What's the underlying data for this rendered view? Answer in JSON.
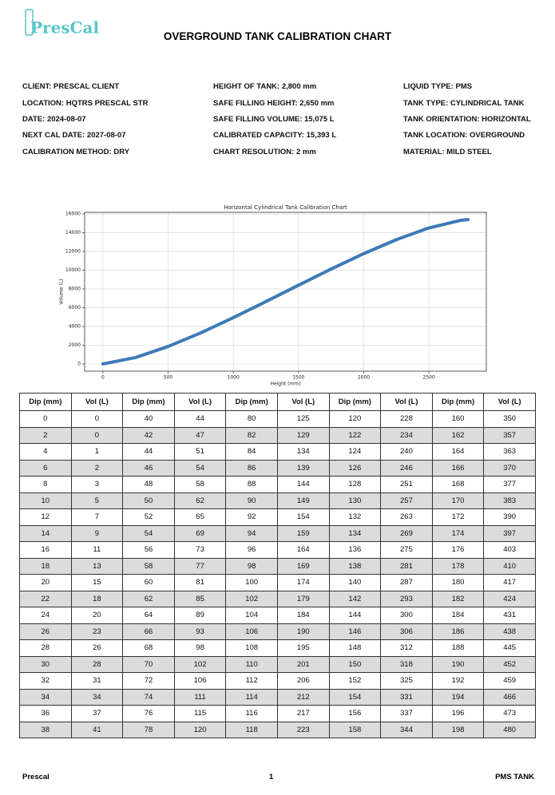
{
  "header": {
    "logo": "PresCal",
    "title": "OVERGROUND TANK CALIBRATION CHART"
  },
  "info": {
    "columns": [
      [
        "CLIENT: PRESCAL CLIENT",
        "LOCATION: HQTRS PRESCAL STR",
        "DATE: 2024-08-07",
        "NEXT CAL DATE: 2027-08-07",
        "CALIBRATION METHOD: DRY"
      ],
      [
        "HEIGHT OF TANK: 2,800 mm",
        "SAFE FILLING HEIGHT: 2,650 mm",
        "SAFE FILLING VOLUME: 15,075 L",
        "CALIBRATED CAPACITY: 15,393 L",
        "CHART RESOLUTION: 2 mm"
      ],
      [
        "LIQUID TYPE: PMS",
        "TANK TYPE: CYLINDRICAL TANK",
        "TANK ORIENTATION: HORIZONTAL",
        "TANK LOCATION: OVERGROUND",
        "MATERIAL: MILD STEEL"
      ]
    ]
  },
  "chart_data": {
    "type": "line",
    "title": "Horizontal Cylindrical Tank Calibration Chart",
    "x_label": "Height (mm)",
    "y_label": "Volume (L)",
    "x": [
      0,
      250,
      500,
      750,
      1000,
      1250,
      1500,
      1750,
      2000,
      2250,
      2500,
      2750,
      2800
    ],
    "values": [
      0,
      682,
      1862,
      3312,
      4936,
      6649,
      8395,
      10120,
      11765,
      13256,
      14507,
      15331,
      15393
    ],
    "color": "#3d7ab8",
    "xlim": [
      -140,
      2940
    ],
    "ylim": [
      -770,
      16170
    ],
    "xticks": [
      0,
      500,
      1000,
      1500,
      2000,
      2500
    ],
    "yticks": [
      0,
      2000,
      4000,
      6000,
      8000,
      10000,
      12000,
      14000,
      16000
    ],
    "grid": true
  },
  "table": {
    "headers": [
      "Dip (mm)",
      "Vol (L)",
      "Dip (mm)",
      "Vol (L)",
      "Dip (mm)",
      "Vol (L)",
      "Dip (mm)",
      "Vol (L)",
      "Dip (mm)",
      "Vol (L)"
    ],
    "rows": [
      [
        0,
        0,
        40,
        44,
        80,
        125,
        120,
        228,
        160,
        350
      ],
      [
        2,
        0,
        42,
        47,
        82,
        129,
        122,
        234,
        162,
        357
      ],
      [
        4,
        1,
        44,
        51,
        84,
        134,
        124,
        240,
        164,
        363
      ],
      [
        6,
        2,
        46,
        54,
        86,
        139,
        126,
        246,
        166,
        370
      ],
      [
        8,
        3,
        48,
        58,
        88,
        144,
        128,
        251,
        168,
        377
      ],
      [
        10,
        5,
        50,
        62,
        90,
        149,
        130,
        257,
        170,
        383
      ],
      [
        12,
        7,
        52,
        65,
        92,
        154,
        132,
        263,
        172,
        390
      ],
      [
        14,
        9,
        54,
        69,
        94,
        159,
        134,
        269,
        174,
        397
      ],
      [
        16,
        11,
        56,
        73,
        96,
        164,
        136,
        275,
        176,
        403
      ],
      [
        18,
        13,
        58,
        77,
        98,
        169,
        138,
        281,
        178,
        410
      ],
      [
        20,
        15,
        60,
        81,
        100,
        174,
        140,
        287,
        180,
        417
      ],
      [
        22,
        18,
        62,
        85,
        102,
        179,
        142,
        293,
        182,
        424
      ],
      [
        24,
        20,
        64,
        89,
        104,
        184,
        144,
        300,
        184,
        431
      ],
      [
        26,
        23,
        66,
        93,
        106,
        190,
        146,
        306,
        186,
        438
      ],
      [
        28,
        26,
        68,
        98,
        108,
        195,
        148,
        312,
        188,
        445
      ],
      [
        30,
        28,
        70,
        102,
        110,
        201,
        150,
        318,
        190,
        452
      ],
      [
        32,
        31,
        72,
        106,
        112,
        206,
        152,
        325,
        192,
        459
      ],
      [
        34,
        34,
        74,
        111,
        114,
        212,
        154,
        331,
        194,
        466
      ],
      [
        36,
        37,
        76,
        115,
        116,
        217,
        156,
        337,
        196,
        473
      ],
      [
        38,
        41,
        78,
        120,
        118,
        223,
        158,
        344,
        198,
        480
      ]
    ]
  },
  "footer": {
    "left": "Prescal",
    "center": "1",
    "right": "PMS TANK"
  }
}
